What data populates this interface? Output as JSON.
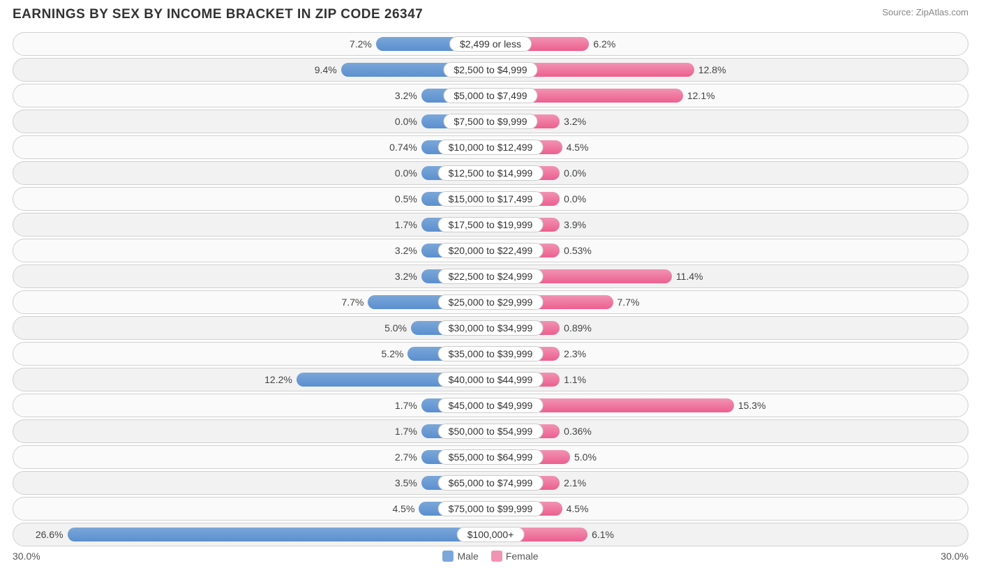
{
  "title": "EARNINGS BY SEX BY INCOME BRACKET IN ZIP CODE 26347",
  "source": "Source: ZipAtlas.com",
  "chart": {
    "type": "diverging-bar",
    "axis_max": 30.0,
    "axis_left_label": "30.0%",
    "axis_right_label": "30.0%",
    "male_color": "#7ba7d9",
    "male_color_dark": "#5b8fcf",
    "female_color": "#f193b2",
    "female_color_dark": "#ec5f8f",
    "track_border": "#d0d0d0",
    "track_bg_odd": "#fafafa",
    "track_bg_even": "#f2f2f2",
    "label_bg": "#ffffff",
    "label_border": "#cccccc",
    "text_color": "#444444",
    "rows": [
      {
        "label": "$2,499 or less",
        "male": 7.2,
        "female": 6.2
      },
      {
        "label": "$2,500 to $4,999",
        "male": 9.4,
        "female": 12.8
      },
      {
        "label": "$5,000 to $7,499",
        "male": 3.2,
        "female": 12.1
      },
      {
        "label": "$7,500 to $9,999",
        "male": 0.0,
        "female": 3.2
      },
      {
        "label": "$10,000 to $12,499",
        "male": 0.74,
        "female": 4.5
      },
      {
        "label": "$12,500 to $14,999",
        "male": 0.0,
        "female": 0.0
      },
      {
        "label": "$15,000 to $17,499",
        "male": 0.5,
        "female": 0.0
      },
      {
        "label": "$17,500 to $19,999",
        "male": 1.7,
        "female": 3.9
      },
      {
        "label": "$20,000 to $22,499",
        "male": 3.2,
        "female": 0.53
      },
      {
        "label": "$22,500 to $24,999",
        "male": 3.2,
        "female": 11.4
      },
      {
        "label": "$25,000 to $29,999",
        "male": 7.7,
        "female": 7.7
      },
      {
        "label": "$30,000 to $34,999",
        "male": 5.0,
        "female": 0.89
      },
      {
        "label": "$35,000 to $39,999",
        "male": 5.2,
        "female": 2.3
      },
      {
        "label": "$40,000 to $44,999",
        "male": 12.2,
        "female": 1.1
      },
      {
        "label": "$45,000 to $49,999",
        "male": 1.7,
        "female": 15.3
      },
      {
        "label": "$50,000 to $54,999",
        "male": 1.7,
        "female": 0.36
      },
      {
        "label": "$55,000 to $64,999",
        "male": 2.7,
        "female": 5.0
      },
      {
        "label": "$65,000 to $74,999",
        "male": 3.5,
        "female": 2.1
      },
      {
        "label": "$75,000 to $99,999",
        "male": 4.5,
        "female": 4.5
      },
      {
        "label": "$100,000+",
        "male": 26.6,
        "female": 6.1
      }
    ],
    "legend": {
      "male": "Male",
      "female": "Female"
    },
    "min_bar_pct": 14.5
  }
}
